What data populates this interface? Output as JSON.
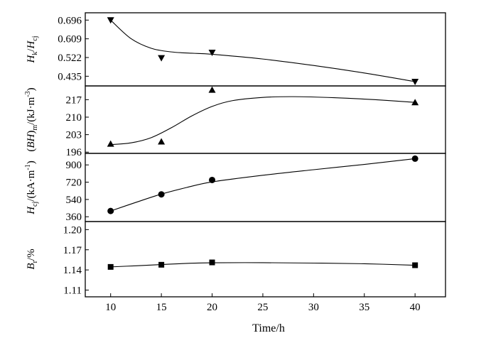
{
  "chart_data": {
    "type": "scatter",
    "x_ticks": [
      "10",
      "15",
      "20",
      "25",
      "30",
      "35",
      "40"
    ],
    "x_range": [
      7.5,
      43
    ],
    "xlabel": "Time/h",
    "panels": [
      {
        "ylabel": "Hk/Hcj",
        "ylabel_parts": [
          "H",
          "k",
          "/",
          "H",
          "cj"
        ],
        "marker": "triangle-down",
        "y_ticks": [
          "0.696",
          "0.609",
          "0.522",
          "0.435"
        ],
        "y_range": [
          0.39,
          0.73
        ],
        "x": [
          10,
          15,
          20,
          40
        ],
        "y": [
          0.696,
          0.52,
          0.545,
          0.41
        ],
        "fit_x": [
          10,
          12,
          14,
          16,
          18,
          20,
          25,
          30,
          35,
          40
        ],
        "fit_y": [
          0.696,
          0.61,
          0.565,
          0.548,
          0.542,
          0.537,
          0.515,
          0.485,
          0.45,
          0.41
        ]
      },
      {
        "ylabel": "(BH)m/(kJ·m-3)",
        "ylabel_parts": [
          "(",
          "BH",
          ")",
          "m",
          "/(kJ·m",
          "-3",
          ")"
        ],
        "marker": "triangle-up",
        "y_ticks": [
          "196",
          "203",
          "210",
          "217"
        ],
        "y_range": [
          195.5,
          222.5
        ],
        "x": [
          10,
          15,
          20,
          40
        ],
        "y": [
          199.3,
          200.2,
          220.9,
          215.9
        ],
        "fit_x": [
          10,
          12,
          14,
          16,
          18,
          20,
          22,
          25,
          28,
          32,
          36,
          40
        ],
        "fit_y": [
          199.0,
          199.7,
          201.8,
          205.8,
          210.5,
          214.3,
          216.6,
          217.9,
          218.2,
          217.8,
          217.0,
          215.9
        ]
      },
      {
        "ylabel": "Hcj/(kA·m-1)",
        "ylabel_parts": [
          "H",
          "cj",
          "/(kA·m",
          "-1",
          ")"
        ],
        "marker": "circle",
        "y_ticks": [
          "360",
          "540",
          "720",
          "900"
        ],
        "y_range": [
          310,
          1020
        ],
        "x": [
          10,
          15,
          20,
          40
        ],
        "y": [
          420,
          593,
          743,
          965
        ],
        "fit_x": [
          10,
          12.5,
          15,
          17.5,
          20,
          25,
          30,
          35,
          40
        ],
        "fit_y": [
          420,
          510,
          596,
          665,
          723,
          792,
          850,
          905,
          965
        ]
      },
      {
        "ylabel": "Br/%",
        "ylabel_parts": [
          "B",
          "r",
          "/%"
        ],
        "marker": "square",
        "y_ticks": [
          "1.11",
          "1.14",
          "1.17",
          "1.20"
        ],
        "y_range": [
          1.1,
          1.212
        ],
        "x": [
          10,
          15,
          20,
          40
        ],
        "y": [
          1.1445,
          1.1477,
          1.1512,
          1.147
        ],
        "fit_x": [
          10,
          12.5,
          15,
          17.5,
          20,
          25,
          30,
          35,
          40
        ],
        "fit_y": [
          1.1445,
          1.1462,
          1.148,
          1.1497,
          1.1507,
          1.1508,
          1.1502,
          1.1492,
          1.147
        ]
      }
    ]
  }
}
